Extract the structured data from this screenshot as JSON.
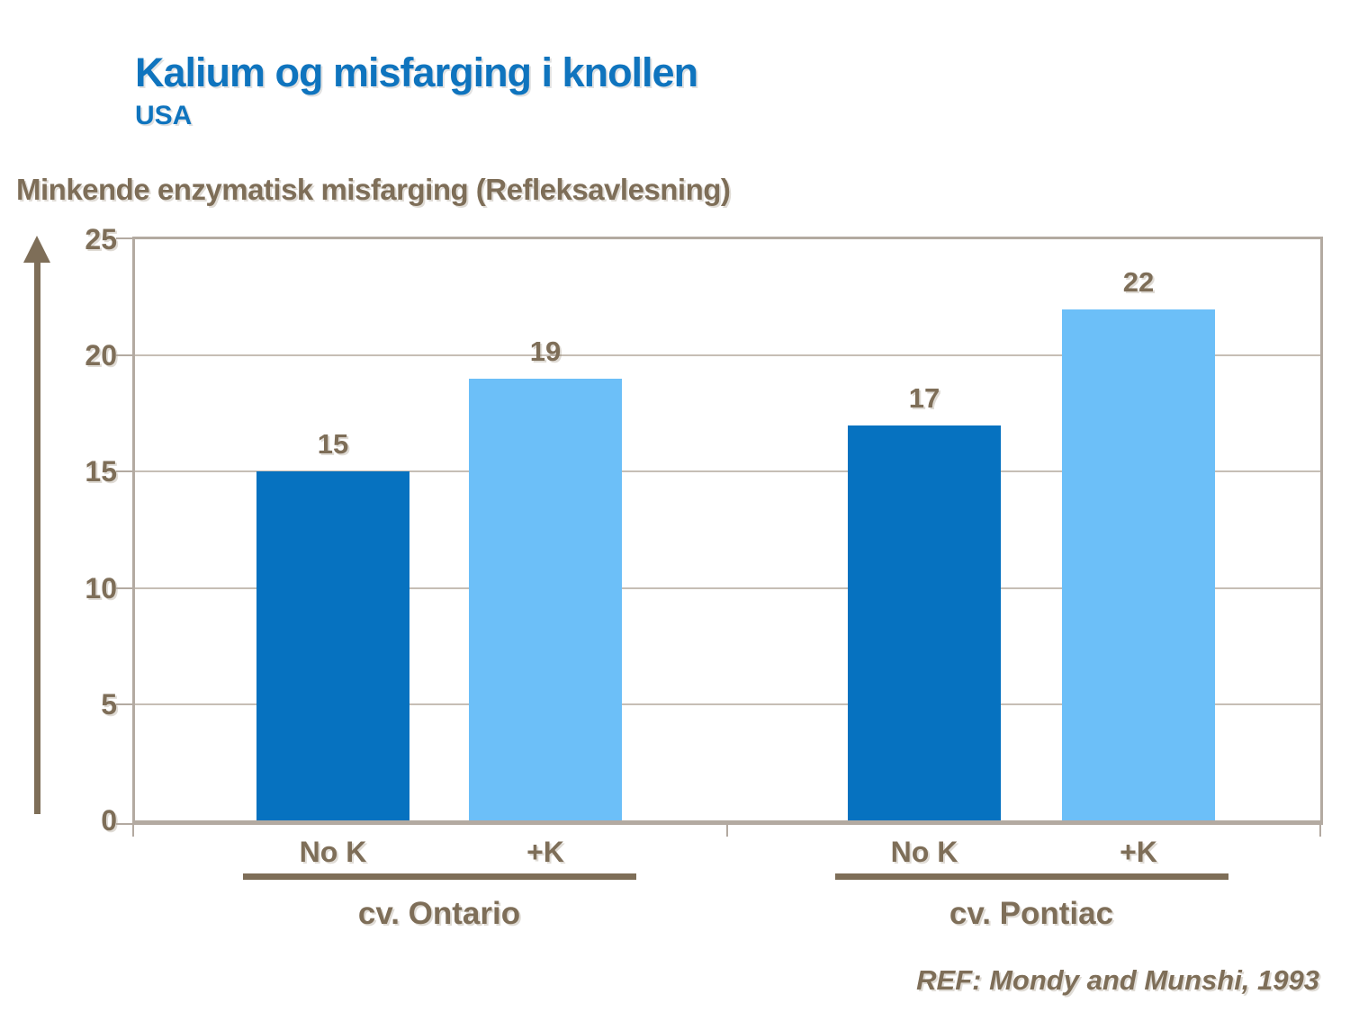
{
  "header": {
    "title": "Kalium og misfarging i knollen",
    "subtitle": "USA"
  },
  "chart_data": {
    "type": "bar",
    "title": "Minkende enzymatisk misfarging (Refleksavlesning)",
    "ylabel": "Minkende enzymatisk misfarging (Refleksavlesning)",
    "xlabel": "",
    "ylim": [
      0,
      25
    ],
    "yticks": [
      25,
      20,
      15,
      10,
      5,
      0
    ],
    "grid": "horizontal",
    "legend_position": "none",
    "categories": [
      "No K",
      "+K"
    ],
    "series": [
      {
        "name": "No K",
        "values": [
          15,
          17
        ]
      },
      {
        "name": "+K",
        "values": [
          19,
          22
        ]
      }
    ],
    "groups": [
      {
        "name": "cv. Ontario",
        "bars": [
          {
            "label": "No K",
            "value": 15,
            "color_key": "no_k"
          },
          {
            "label": "+K",
            "value": 19,
            "color_key": "plus_k"
          }
        ]
      },
      {
        "name": "cv. Pontiac",
        "bars": [
          {
            "label": "No K",
            "value": 17,
            "color_key": "no_k"
          },
          {
            "label": "+K",
            "value": 22,
            "color_key": "plus_k"
          }
        ]
      }
    ],
    "colors": {
      "no_k": "#0672C0",
      "plus_k": "#6CBFF8",
      "axis_text": "#7E6E58",
      "frame": "#B3AAA1",
      "title_blue": "#0F74BE"
    }
  },
  "footer": {
    "reference": "REF: Mondy and Munshi, 1993"
  }
}
